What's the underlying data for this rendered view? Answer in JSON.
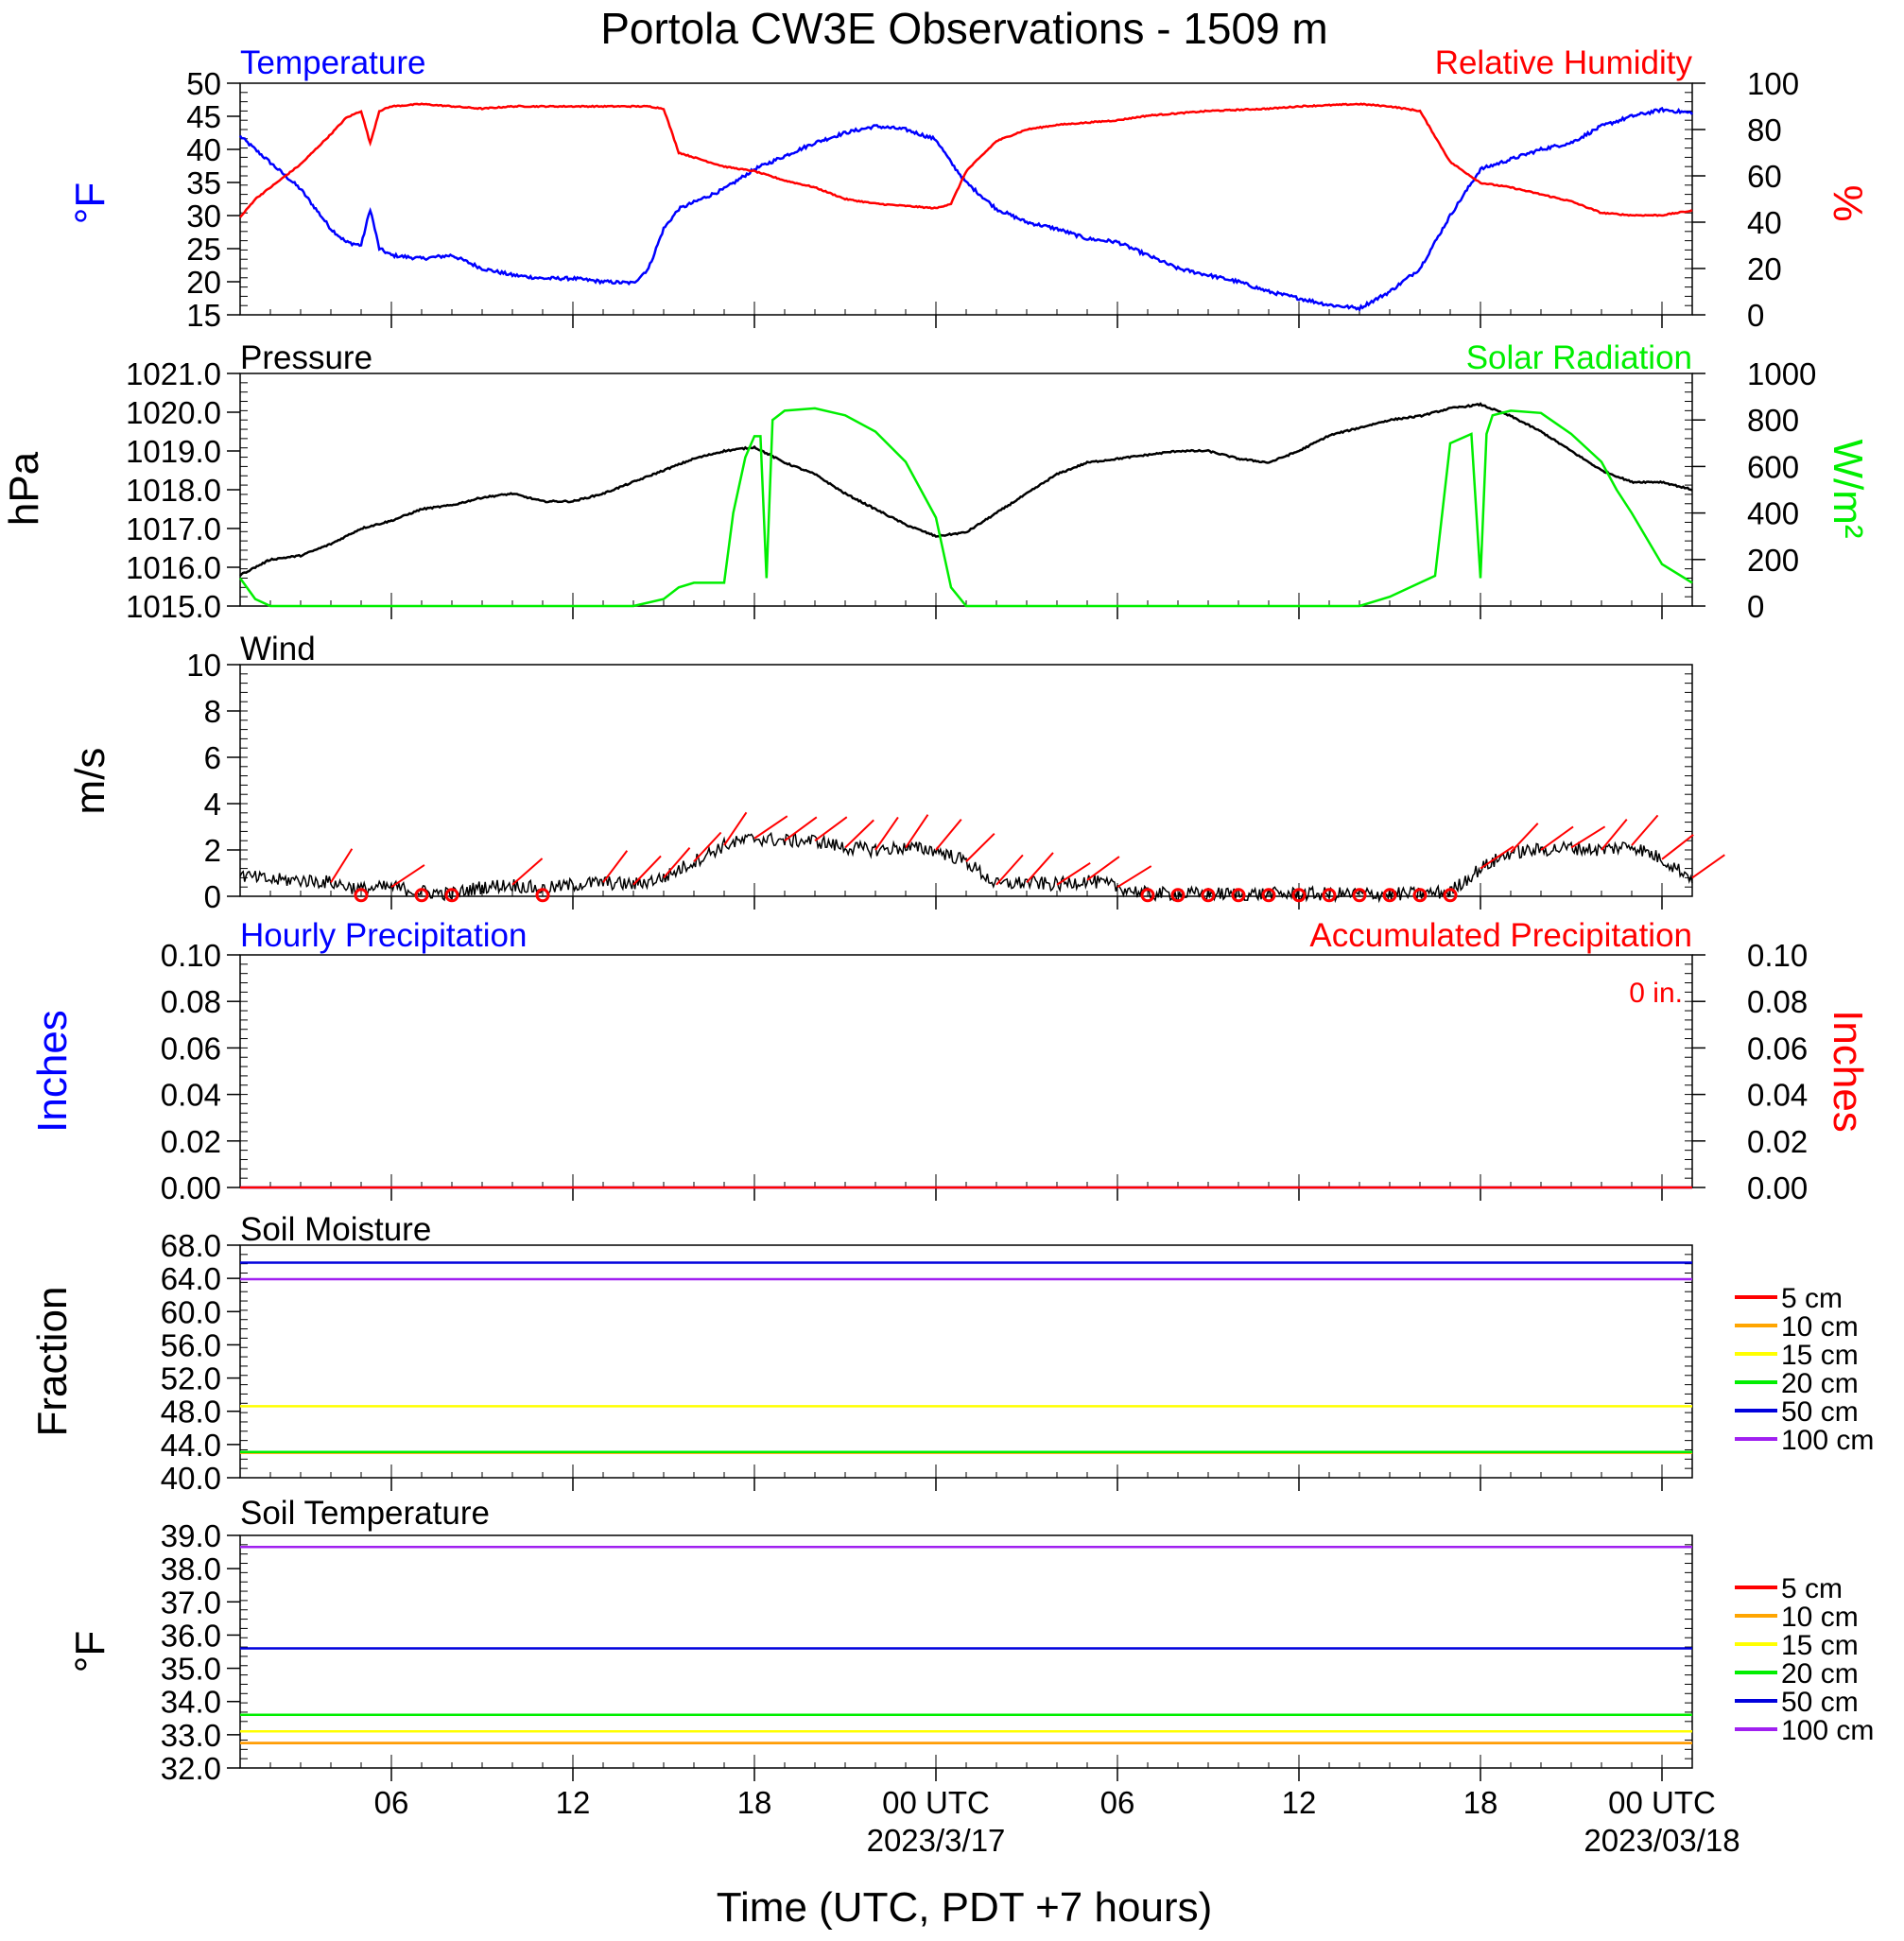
{
  "title": "Portola CW3E Observations - 1509 m",
  "xlabel": "Time (UTC, PDT +7 hours)",
  "x_ticks": [
    "06",
    "12",
    "18",
    "00 UTC",
    "06",
    "12",
    "18",
    "00 UTC"
  ],
  "x_dates": [
    "2023/3/17",
    "2023/03/18"
  ],
  "x_range_hours": [
    1,
    49
  ],
  "colors": {
    "temperature": "#0000ff",
    "humidity": "#ff0000",
    "pressure": "#000000",
    "solar": "#00ee00",
    "wind": "#000000",
    "barbs": "#ff0000",
    "depth_5": "#ff0000",
    "depth_10": "#ffa500",
    "depth_15": "#ffff00",
    "depth_20": "#00ee00",
    "depth_50": "#0000dd",
    "depth_100": "#a020f0"
  },
  "chart_data": [
    {
      "type": "line",
      "name": "temperature-humidity",
      "left_title": "Temperature",
      "right_title": "Relative Humidity",
      "ylabel_left": "°F",
      "ylabel_right": "%",
      "ylim_left": [
        15,
        50
      ],
      "ylim_right": [
        0,
        100
      ],
      "yticks_left": [
        "15",
        "20",
        "25",
        "30",
        "35",
        "40",
        "45",
        "50"
      ],
      "yticks_right": [
        "0",
        "20",
        "40",
        "60",
        "80",
        "100"
      ],
      "series": [
        {
          "name": "Temperature",
          "axis": "left",
          "color": "#0000ff",
          "x": [
            1,
            1.5,
            2,
            3,
            4,
            4.5,
            5,
            5.3,
            5.6,
            6,
            7,
            8,
            9,
            10,
            11,
            12,
            13,
            14,
            14.5,
            15,
            15.5,
            16,
            17,
            18,
            19,
            20,
            21,
            22,
            23,
            24,
            24.5,
            25,
            26,
            27,
            28,
            29,
            30,
            31,
            32,
            33,
            34,
            35,
            36,
            37,
            38,
            39,
            40,
            41,
            42,
            43,
            44,
            45,
            46,
            47,
            48,
            49
          ],
          "y": [
            42,
            40,
            38,
            34,
            28,
            26,
            25.5,
            31,
            25,
            24,
            23.5,
            24,
            22,
            21,
            20.5,
            20.5,
            20,
            19.8,
            22,
            28,
            31,
            32,
            34,
            37,
            39,
            41,
            42.5,
            43.5,
            43,
            41.5,
            38,
            35,
            31,
            29,
            28,
            26.5,
            26,
            24,
            22,
            21,
            20,
            18.5,
            17.5,
            16.5,
            16,
            18.5,
            22,
            30,
            37,
            38.5,
            40,
            41,
            43.5,
            45,
            46,
            45.5
          ]
        },
        {
          "name": "Relative Humidity",
          "axis": "right",
          "color": "#ff0000",
          "x": [
            1,
            1.5,
            2,
            3,
            4,
            4.5,
            5,
            5.3,
            5.6,
            6,
            7,
            8,
            9,
            10,
            11,
            12,
            13,
            14,
            14.5,
            15,
            15.5,
            16,
            17,
            18,
            19,
            20,
            21,
            22,
            23,
            24,
            24.5,
            25,
            26,
            27,
            28,
            29,
            30,
            31,
            32,
            33,
            34,
            35,
            36,
            37,
            38,
            39,
            40,
            41,
            42,
            43,
            44,
            45,
            46,
            47,
            48,
            49
          ],
          "y": [
            42,
            50,
            55,
            65,
            78,
            85,
            88,
            74,
            88,
            90,
            91,
            90,
            89,
            90,
            90,
            90,
            90,
            90,
            90,
            89,
            70,
            68,
            64,
            62,
            58,
            55,
            50,
            48,
            47,
            46,
            48,
            62,
            75,
            80,
            82,
            83,
            84,
            86,
            87,
            88,
            88.5,
            89,
            90,
            90.5,
            91,
            90,
            88,
            66,
            57,
            55,
            52,
            49,
            44,
            43,
            43,
            45
          ]
        }
      ]
    },
    {
      "type": "line",
      "name": "pressure-solar",
      "left_title": "Pressure",
      "right_title": "Solar Radiation",
      "ylabel_left": "hPa",
      "ylabel_right": "W/m²",
      "ylim_left": [
        1015,
        1021
      ],
      "ylim_right": [
        0,
        1000
      ],
      "yticks_left": [
        "1015.0",
        "1016.0",
        "1017.0",
        "1018.0",
        "1019.0",
        "1020.0",
        "1021.0"
      ],
      "yticks_right": [
        "0",
        "200",
        "400",
        "600",
        "800",
        "1000"
      ],
      "series": [
        {
          "name": "Pressure",
          "axis": "left",
          "color": "#000000",
          "x": [
            1,
            2,
            3,
            4,
            5,
            6,
            7,
            8,
            9,
            10,
            11,
            12,
            13,
            14,
            15,
            16,
            17,
            18,
            19,
            20,
            21,
            22,
            23,
            24,
            25,
            26,
            27,
            28,
            29,
            30,
            31,
            32,
            33,
            34,
            35,
            36,
            37,
            38,
            39,
            40,
            41,
            42,
            43,
            44,
            45,
            46,
            47,
            48,
            49
          ],
          "y": [
            1015.8,
            1016.2,
            1016.3,
            1016.6,
            1017.0,
            1017.2,
            1017.5,
            1017.6,
            1017.8,
            1017.9,
            1017.7,
            1017.7,
            1017.9,
            1018.2,
            1018.5,
            1018.8,
            1019.0,
            1019.1,
            1018.7,
            1018.4,
            1017.9,
            1017.5,
            1017.1,
            1016.8,
            1016.9,
            1017.4,
            1017.9,
            1018.4,
            1018.7,
            1018.8,
            1018.9,
            1019.0,
            1019.0,
            1018.8,
            1018.7,
            1019.0,
            1019.4,
            1019.6,
            1019.8,
            1019.9,
            1020.1,
            1020.2,
            1019.9,
            1019.5,
            1019.0,
            1018.5,
            1018.2,
            1018.2,
            1018.0
          ]
        },
        {
          "name": "Solar Radiation",
          "axis": "right",
          "color": "#00ee00",
          "x": [
            1,
            1.5,
            2,
            14,
            15,
            15.5,
            16,
            17,
            17.3,
            17.7,
            18,
            18.2,
            18.4,
            18.6,
            19,
            20,
            21,
            22,
            23,
            24,
            24.5,
            25,
            26,
            38,
            39,
            40,
            40.5,
            41,
            41.7,
            42,
            42.2,
            42.4,
            43,
            44,
            45,
            46,
            46.5,
            47,
            48,
            49
          ],
          "y": [
            120,
            30,
            0,
            0,
            30,
            80,
            100,
            100,
            400,
            640,
            730,
            730,
            120,
            800,
            840,
            850,
            820,
            750,
            620,
            380,
            80,
            0,
            0,
            0,
            40,
            100,
            130,
            700,
            740,
            120,
            740,
            820,
            840,
            830,
            740,
            620,
            500,
            400,
            180,
            100
          ]
        }
      ]
    },
    {
      "type": "line",
      "name": "wind",
      "left_title": "Wind",
      "ylabel_left": "m/s",
      "ylim_left": [
        0,
        10
      ],
      "yticks_left": [
        "0",
        "2",
        "4",
        "6",
        "8",
        "10"
      ],
      "series": [
        {
          "name": "Wind",
          "axis": "left",
          "color": "#000000",
          "x": [
            1,
            2,
            3,
            4,
            5,
            6,
            7,
            8,
            9,
            10,
            11,
            12,
            13,
            14,
            15,
            16,
            17,
            18,
            19,
            20,
            21,
            22,
            23,
            24,
            25,
            26,
            27,
            28,
            29,
            30,
            31,
            32,
            33,
            34,
            35,
            36,
            37,
            38,
            39,
            40,
            41,
            42,
            43,
            44,
            45,
            46,
            47,
            48,
            49
          ],
          "y": [
            0.9,
            0.7,
            0.7,
            0.6,
            0.3,
            0.4,
            0.2,
            0.1,
            0.4,
            0.5,
            0.3,
            0.5,
            0.6,
            0.5,
            0.8,
            1.5,
            2.2,
            2.5,
            2.4,
            2.4,
            2.1,
            2.0,
            2.1,
            2.0,
            1.5,
            0.5,
            0.6,
            0.5,
            0.7,
            0.4,
            0.1,
            0.1,
            0.1,
            0.1,
            0.1,
            0.1,
            0.1,
            0.1,
            0.1,
            0.1,
            0.2,
            1.2,
            1.9,
            2.0,
            2.1,
            2.0,
            2.2,
            1.6,
            0.8
          ]
        }
      ],
      "barbs": {
        "hours": [
          4,
          5,
          6,
          7,
          8,
          10,
          11,
          13,
          14,
          15,
          16,
          17,
          18,
          19,
          20,
          21,
          22,
          23,
          24,
          25,
          26,
          27,
          28,
          29,
          30,
          31,
          32,
          33,
          34,
          35,
          36,
          37,
          38,
          39,
          40,
          41,
          42,
          43,
          44,
          45,
          46,
          47,
          48,
          49
        ]
      }
    },
    {
      "type": "line",
      "name": "precipitation",
      "left_title": "Hourly Precipitation",
      "right_title": "Accumulated Precipitation",
      "annotation": "0 in.",
      "ylabel_left": "Inches",
      "ylabel_right": "Inches",
      "ylim_left": [
        0,
        0.1
      ],
      "ylim_right": [
        0,
        0.1
      ],
      "yticks_left": [
        "0.00",
        "0.02",
        "0.04",
        "0.06",
        "0.08",
        "0.10"
      ],
      "yticks_right": [
        "0.00",
        "0.02",
        "0.04",
        "0.06",
        "0.08",
        "0.10"
      ],
      "series": [
        {
          "name": "Hourly Precipitation",
          "axis": "left",
          "color": "#0000ff",
          "x": [
            1,
            49
          ],
          "y": [
            0,
            0
          ]
        },
        {
          "name": "Accumulated Precipitation",
          "axis": "right",
          "color": "#ff0000",
          "x": [
            1,
            49
          ],
          "y": [
            0,
            0
          ]
        }
      ]
    },
    {
      "type": "line",
      "name": "soil-moisture",
      "left_title": "Soil Moisture",
      "ylabel_left": "Fraction",
      "ylim_left": [
        40,
        68
      ],
      "yticks_left": [
        "40.0",
        "44.0",
        "48.0",
        "52.0",
        "56.0",
        "60.0",
        "64.0",
        "68.0"
      ],
      "legend": [
        "5 cm",
        "10 cm",
        "15 cm",
        "20 cm",
        "50 cm",
        "100 cm"
      ],
      "series": [
        {
          "name": "5 cm",
          "axis": "left",
          "color": "#ff0000",
          "x": [
            1,
            49
          ],
          "y": [
            43.1,
            43.1
          ]
        },
        {
          "name": "10 cm",
          "axis": "left",
          "color": "#ffa500",
          "x": [
            1,
            49
          ],
          "y": [
            43.0,
            43.0
          ]
        },
        {
          "name": "15 cm",
          "axis": "left",
          "color": "#ffff00",
          "x": [
            1,
            49
          ],
          "y": [
            48.6,
            48.6
          ]
        },
        {
          "name": "20 cm",
          "axis": "left",
          "color": "#00ee00",
          "x": [
            1,
            49
          ],
          "y": [
            43.1,
            43.1
          ]
        },
        {
          "name": "50 cm",
          "axis": "left",
          "color": "#0000dd",
          "x": [
            1,
            49
          ],
          "y": [
            65.9,
            65.9
          ]
        },
        {
          "name": "100 cm",
          "axis": "left",
          "color": "#a020f0",
          "x": [
            1,
            49
          ],
          "y": [
            63.9,
            63.9
          ]
        }
      ]
    },
    {
      "type": "line",
      "name": "soil-temperature",
      "left_title": "Soil Temperature",
      "ylabel_left": "°F",
      "ylim_left": [
        32,
        39
      ],
      "yticks_left": [
        "32.0",
        "33.0",
        "34.0",
        "35.0",
        "36.0",
        "37.0",
        "38.0",
        "39.0"
      ],
      "legend": [
        "5 cm",
        "10 cm",
        "15 cm",
        "20 cm",
        "50 cm",
        "100 cm"
      ],
      "series": [
        {
          "name": "5 cm",
          "axis": "left",
          "color": "#ff0000",
          "x": [
            1,
            49
          ],
          "y": [
            32.75,
            32.75
          ]
        },
        {
          "name": "10 cm",
          "axis": "left",
          "color": "#ffa500",
          "x": [
            1,
            49
          ],
          "y": [
            32.75,
            32.75
          ]
        },
        {
          "name": "15 cm",
          "axis": "left",
          "color": "#ffff00",
          "x": [
            1,
            49
          ],
          "y": [
            33.1,
            33.1
          ]
        },
        {
          "name": "20 cm",
          "axis": "left",
          "color": "#00ee00",
          "x": [
            1,
            49
          ],
          "y": [
            33.6,
            33.6
          ]
        },
        {
          "name": "50 cm",
          "axis": "left",
          "color": "#0000dd",
          "x": [
            1,
            49
          ],
          "y": [
            35.6,
            35.6
          ]
        },
        {
          "name": "100 cm",
          "axis": "left",
          "color": "#a020f0",
          "x": [
            1,
            49
          ],
          "y": [
            38.65,
            38.65
          ]
        }
      ]
    }
  ]
}
